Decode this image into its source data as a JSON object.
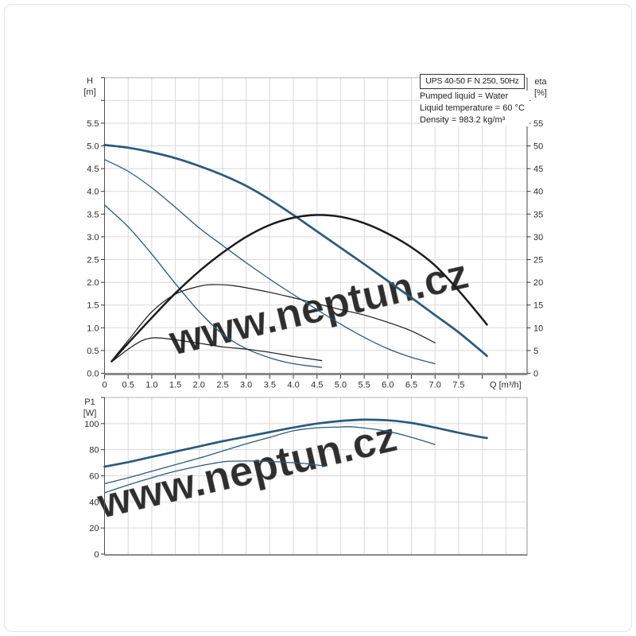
{
  "header": {
    "title": "UPS 40-50 F N 250, 50Hz",
    "info_lines": [
      "Pumped liquid = Water",
      "Liquid temperature = 60 °C",
      "Density = 983.2 kg/m³"
    ]
  },
  "watermark": {
    "text": "www.neptun.cz"
  },
  "colors": {
    "curve_blue": "#2b5a7c",
    "curve_black": "#1b1b1b",
    "grid": "#d9d9d9",
    "frame_light": "#b5b5b5",
    "axis_dark": "#555555",
    "axis_heavy": "#8a8a8a",
    "tick": "#333333",
    "text": "#2e2e2e"
  },
  "chart_data": [
    {
      "id": "head-efficiency-chart",
      "type": "line",
      "x_axis": {
        "unit_label": "Q [m³/h]",
        "min": 0,
        "max": 8.95,
        "grid_step": 0.5,
        "ticks": [
          {
            "v": 0,
            "t": "0"
          },
          {
            "v": 0.5,
            "t": "0.5"
          },
          {
            "v": 1,
            "t": "1.0"
          },
          {
            "v": 1.5,
            "t": "1.5"
          },
          {
            "v": 2,
            "t": "2.0"
          },
          {
            "v": 2.5,
            "t": "2.5"
          },
          {
            "v": 3,
            "t": "3.0"
          },
          {
            "v": 3.5,
            "t": "3.5"
          },
          {
            "v": 4,
            "t": "4.0"
          },
          {
            "v": 4.5,
            "t": "4.5"
          },
          {
            "v": 5,
            "t": "5.0"
          },
          {
            "v": 5.5,
            "t": "5.5"
          },
          {
            "v": 6,
            "t": "6.0"
          },
          {
            "v": 6.5,
            "t": "6.5"
          },
          {
            "v": 7,
            "t": "7.0"
          },
          {
            "v": 7.5,
            "t": "7.5"
          },
          {
            "v": 8,
            "t": ""
          },
          {
            "v": 8.5,
            "t": ""
          }
        ]
      },
      "y_left": {
        "label_lines": [
          "H",
          "[m]"
        ],
        "min": 0,
        "max": 6.5,
        "grid_step": 0.5,
        "ticks": [
          {
            "v": 0,
            "t": "0.0"
          },
          {
            "v": 0.5,
            "t": "0.5"
          },
          {
            "v": 1,
            "t": "1.0"
          },
          {
            "v": 1.5,
            "t": "1.5"
          },
          {
            "v": 2,
            "t": "2.0"
          },
          {
            "v": 2.5,
            "t": "2.5"
          },
          {
            "v": 3,
            "t": "3.0"
          },
          {
            "v": 3.5,
            "t": "3.5"
          },
          {
            "v": 4,
            "t": "4.0"
          },
          {
            "v": 4.5,
            "t": "4.5"
          },
          {
            "v": 5,
            "t": "5.0"
          },
          {
            "v": 5.5,
            "t": "5.5"
          },
          {
            "v": 6,
            "t": ""
          },
          {
            "v": 6.5,
            "t": ""
          }
        ]
      },
      "y_right": {
        "label_lines": [
          "eta",
          "[%]"
        ],
        "min": 0,
        "max": 65,
        "ticks": [
          {
            "v": 0,
            "t": "0"
          },
          {
            "v": 5,
            "t": "5"
          },
          {
            "v": 10,
            "t": "10"
          },
          {
            "v": 15,
            "t": "15"
          },
          {
            "v": 20,
            "t": "20"
          },
          {
            "v": 25,
            "t": "25"
          },
          {
            "v": 30,
            "t": "30"
          },
          {
            "v": 35,
            "t": "35"
          },
          {
            "v": 40,
            "t": "40"
          },
          {
            "v": 45,
            "t": "45"
          },
          {
            "v": 50,
            "t": "50"
          },
          {
            "v": 55,
            "t": "55"
          },
          {
            "v": 60,
            "t": ""
          }
        ]
      },
      "series": [
        {
          "name": "head-speed3",
          "axis": "left",
          "color": "curve_blue",
          "width": 2.7,
          "points": [
            [
              0,
              5.02
            ],
            [
              0.5,
              4.96
            ],
            [
              1,
              4.86
            ],
            [
              1.5,
              4.73
            ],
            [
              2,
              4.56
            ],
            [
              2.5,
              4.36
            ],
            [
              3,
              4.12
            ],
            [
              3.5,
              3.82
            ],
            [
              4,
              3.48
            ],
            [
              4.5,
              3.12
            ],
            [
              5,
              2.76
            ],
            [
              5.5,
              2.4
            ],
            [
              6,
              2.03
            ],
            [
              6.5,
              1.66
            ],
            [
              7,
              1.28
            ],
            [
              7.5,
              0.9
            ],
            [
              8,
              0.47
            ],
            [
              8.1,
              0.38
            ]
          ]
        },
        {
          "name": "head-speed2",
          "axis": "left",
          "color": "curve_blue",
          "width": 1.3,
          "points": [
            [
              0,
              4.7
            ],
            [
              0.5,
              4.44
            ],
            [
              1,
              4.08
            ],
            [
              1.5,
              3.65
            ],
            [
              2,
              3.2
            ],
            [
              2.5,
              2.81
            ],
            [
              3,
              2.43
            ],
            [
              3.5,
              2.07
            ],
            [
              4,
              1.73
            ],
            [
              4.5,
              1.4
            ],
            [
              5,
              1.08
            ],
            [
              5.5,
              0.79
            ],
            [
              6,
              0.54
            ],
            [
              6.5,
              0.35
            ],
            [
              7,
              0.21
            ]
          ]
        },
        {
          "name": "head-speed1",
          "axis": "left",
          "color": "curve_blue",
          "width": 1.3,
          "points": [
            [
              0,
              3.7
            ],
            [
              0.5,
              3.22
            ],
            [
              1,
              2.62
            ],
            [
              1.5,
              1.97
            ],
            [
              2,
              1.36
            ],
            [
              2.5,
              0.86
            ],
            [
              3,
              0.54
            ],
            [
              3.5,
              0.34
            ],
            [
              4,
              0.21
            ],
            [
              4.6,
              0.13
            ]
          ]
        },
        {
          "name": "eta-speed3",
          "axis": "right",
          "color": "curve_black",
          "width": 2.5,
          "points": [
            [
              0.15,
              2.6
            ],
            [
              0.5,
              6.6
            ],
            [
              1,
              12.2
            ],
            [
              1.5,
              17.6
            ],
            [
              2,
              22.4
            ],
            [
              2.5,
              26.5
            ],
            [
              3,
              30
            ],
            [
              3.5,
              32.6
            ],
            [
              4,
              34.2
            ],
            [
              4.5,
              34.8
            ],
            [
              5,
              34.4
            ],
            [
              5.5,
              33
            ],
            [
              6,
              30.7
            ],
            [
              6.5,
              27.7
            ],
            [
              7,
              23.7
            ],
            [
              7.5,
              18.2
            ],
            [
              8,
              12
            ],
            [
              8.1,
              10.7
            ]
          ]
        },
        {
          "name": "eta-speed2",
          "axis": "right",
          "color": "curve_black",
          "width": 1.2,
          "points": [
            [
              0.2,
              3.4
            ],
            [
              0.5,
              7.2
            ],
            [
              1,
              13.5
            ],
            [
              1.5,
              17.4
            ],
            [
              2,
              19.1
            ],
            [
              2.3,
              19.5
            ],
            [
              2.7,
              19.3
            ],
            [
              3,
              18.8
            ],
            [
              3.5,
              17.8
            ],
            [
              4,
              16.6
            ],
            [
              4.5,
              15.3
            ],
            [
              5,
              14
            ],
            [
              5.5,
              12.8
            ],
            [
              6,
              11.2
            ],
            [
              6.5,
              9.3
            ],
            [
              7,
              6.7
            ]
          ]
        },
        {
          "name": "eta-speed1",
          "axis": "right",
          "color": "curve_black",
          "width": 1.2,
          "points": [
            [
              0.2,
              2.9
            ],
            [
              0.5,
              5.3
            ],
            [
              0.8,
              7.2
            ],
            [
              1.05,
              7.8
            ],
            [
              1.4,
              7.5
            ],
            [
              2,
              6.6
            ],
            [
              2.5,
              5.8
            ],
            [
              3,
              5.3
            ],
            [
              3.5,
              4.6
            ],
            [
              4,
              3.7
            ],
            [
              4.6,
              2.8
            ]
          ]
        }
      ]
    },
    {
      "id": "power-chart",
      "type": "line",
      "x_axis": {
        "unit_label": "",
        "min": 0,
        "max": 8.95,
        "grid_step": 0.5,
        "ticks": []
      },
      "y_left": {
        "label_lines": [
          "P1",
          "[W]"
        ],
        "min": 0,
        "max": 120,
        "grid_step": 20,
        "ticks": [
          {
            "v": 0,
            "t": "0"
          },
          {
            "v": 20,
            "t": "20"
          },
          {
            "v": 40,
            "t": "40"
          },
          {
            "v": 60,
            "t": "60"
          },
          {
            "v": 80,
            "t": "80"
          },
          {
            "v": 100,
            "t": "100"
          },
          {
            "v": 120,
            "t": ""
          }
        ]
      },
      "series": [
        {
          "name": "power-speed3",
          "axis": "left",
          "color": "curve_blue",
          "width": 2.7,
          "points": [
            [
              0,
              67
            ],
            [
              0.5,
              70.5
            ],
            [
              1,
              74.5
            ],
            [
              1.5,
              78.5
            ],
            [
              2,
              82.5
            ],
            [
              2.5,
              86.5
            ],
            [
              3,
              90
            ],
            [
              3.5,
              93.5
            ],
            [
              4,
              97
            ],
            [
              4.5,
              100
            ],
            [
              5,
              102
            ],
            [
              5.5,
              103
            ],
            [
              6,
              102.5
            ],
            [
              6.5,
              100.5
            ],
            [
              7,
              97
            ],
            [
              7.5,
              93
            ],
            [
              8,
              89.5
            ],
            [
              8.1,
              89
            ]
          ]
        },
        {
          "name": "power-speed2",
          "axis": "left",
          "color": "curve_blue",
          "width": 1.3,
          "points": [
            [
              0,
              54
            ],
            [
              0.5,
              58.5
            ],
            [
              1,
              63.5
            ],
            [
              1.5,
              68.5
            ],
            [
              2,
              73.5
            ],
            [
              2.5,
              79
            ],
            [
              3,
              84.5
            ],
            [
              3.5,
              89.5
            ],
            [
              4,
              94.5
            ],
            [
              4.5,
              96.8
            ],
            [
              5,
              97.4
            ],
            [
              5.3,
              97.4
            ],
            [
              6,
              94
            ],
            [
              6.5,
              89.5
            ],
            [
              7,
              84
            ]
          ]
        },
        {
          "name": "power-speed1",
          "axis": "left",
          "color": "curve_blue",
          "width": 1.3,
          "points": [
            [
              0,
              47
            ],
            [
              0.5,
              53
            ],
            [
              1,
              58.5
            ],
            [
              1.5,
              63.5
            ],
            [
              2,
              67.5
            ],
            [
              2.3,
              69.5
            ],
            [
              2.6,
              71
            ],
            [
              3,
              71.3
            ],
            [
              3.5,
              71
            ],
            [
              4,
              70
            ],
            [
              4.3,
              69.2
            ],
            [
              4.66,
              67.5
            ]
          ]
        }
      ]
    }
  ]
}
